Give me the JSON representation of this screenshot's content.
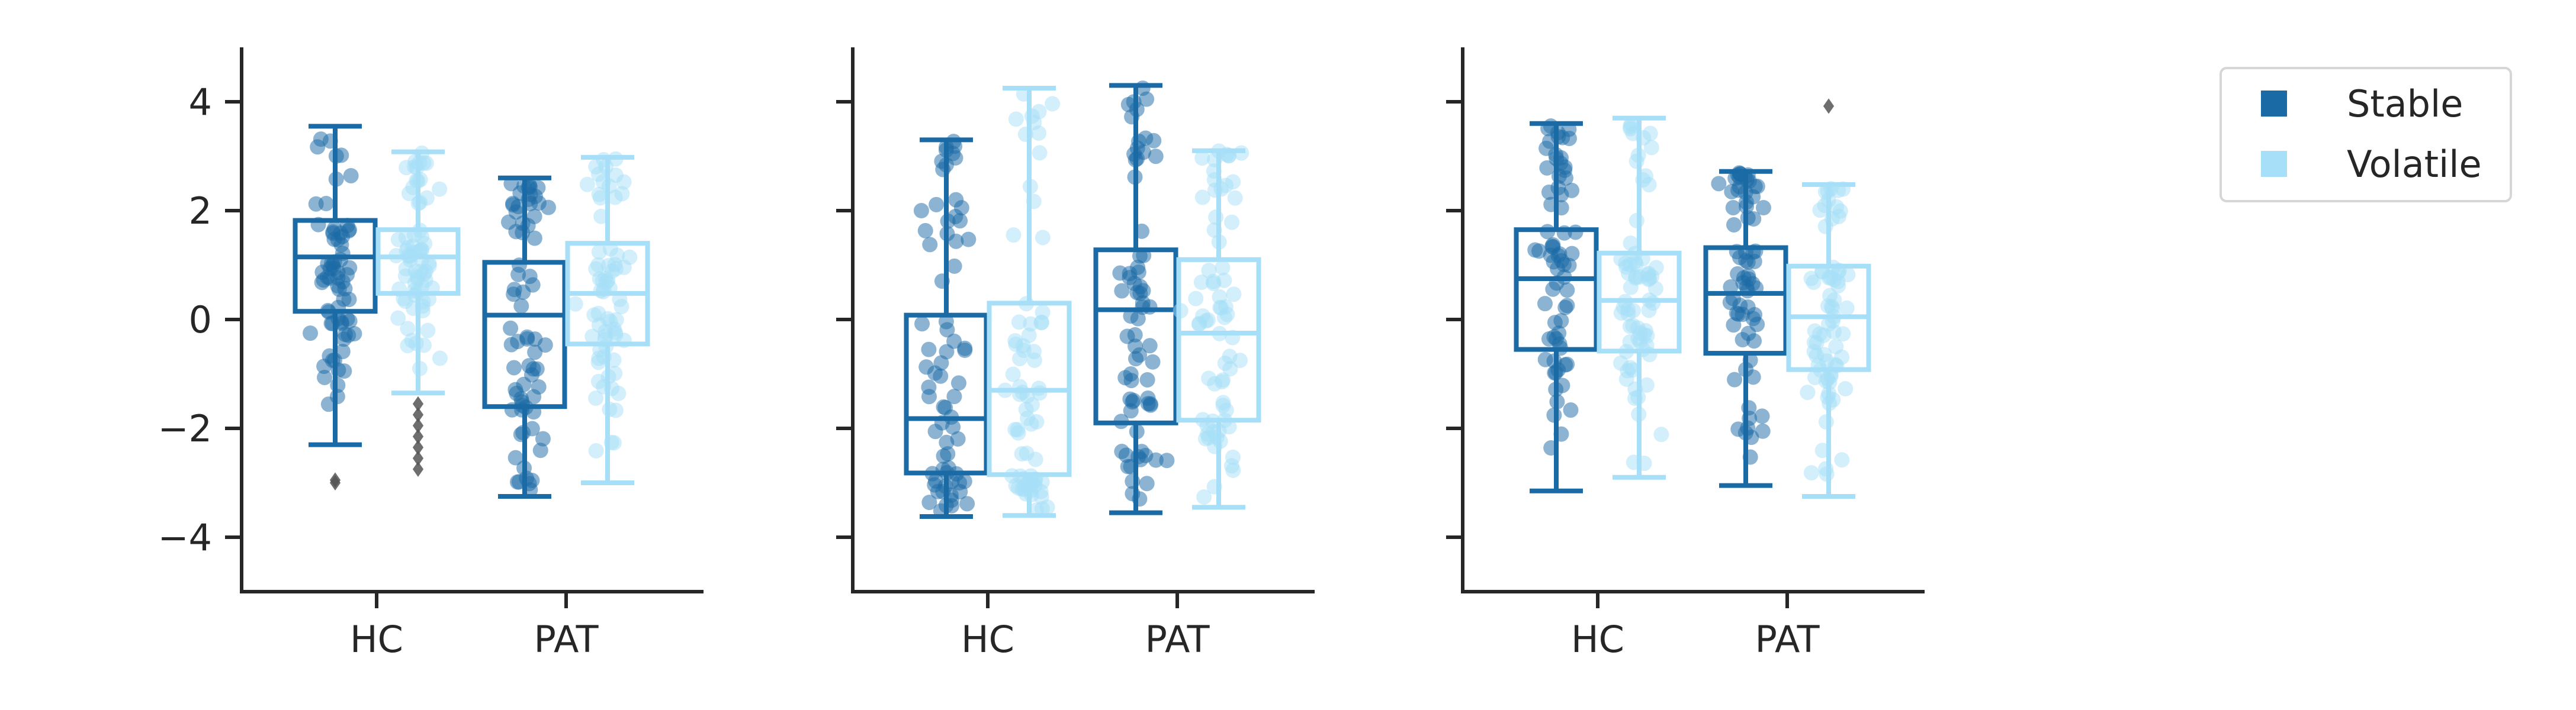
{
  "chart_data": {
    "type": "box",
    "shared_y": {
      "ylim": [
        -5,
        5
      ],
      "ticks": [
        -4,
        -2,
        0,
        2,
        4
      ],
      "tick_labels": [
        "−4",
        "−2",
        "0",
        "2",
        "4"
      ]
    },
    "categories": [
      "HC",
      "PAT"
    ],
    "legend": {
      "placement": "top-right",
      "entries": [
        {
          "name": "Stable",
          "color": "#1a6aa6"
        },
        {
          "name": "Volatile",
          "color": "#a6dff7"
        }
      ]
    },
    "colors": {
      "axis": "#262626",
      "outlier": "#555555"
    },
    "panels": [
      {
        "series": [
          {
            "name": "Stable",
            "boxes": [
              {
                "category": "HC",
                "whislo": -2.3,
                "q1": 0.15,
                "med": 1.15,
                "q3": 1.82,
                "whishi": 3.55,
                "fliers": [
                  -3.0,
                  -2.95
                ]
              },
              {
                "category": "PAT",
                "whislo": -3.25,
                "q1": -1.6,
                "med": 0.08,
                "q3": 1.05,
                "whishi": 2.6,
                "fliers": []
              }
            ]
          },
          {
            "name": "Volatile",
            "boxes": [
              {
                "category": "HC",
                "whislo": -1.35,
                "q1": 0.48,
                "med": 1.15,
                "q3": 1.65,
                "whishi": 3.08,
                "fliers": [
                  -1.55,
                  -1.75,
                  -1.95,
                  -2.15,
                  -2.35,
                  -2.55,
                  -2.75
                ]
              },
              {
                "category": "PAT",
                "whislo": -3.0,
                "q1": -0.45,
                "med": 0.48,
                "q3": 1.4,
                "whishi": 2.98,
                "fliers": []
              }
            ]
          }
        ]
      },
      {
        "series": [
          {
            "name": "Stable",
            "boxes": [
              {
                "category": "HC",
                "whislo": -3.62,
                "q1": -2.82,
                "med": -1.82,
                "q3": 0.08,
                "whishi": 3.3,
                "fliers": []
              },
              {
                "category": "PAT",
                "whislo": -3.55,
                "q1": -1.9,
                "med": 0.18,
                "q3": 1.28,
                "whishi": 4.3,
                "fliers": []
              }
            ]
          },
          {
            "name": "Volatile",
            "boxes": [
              {
                "category": "HC",
                "whislo": -3.6,
                "q1": -2.85,
                "med": -1.3,
                "q3": 0.3,
                "whishi": 4.25,
                "fliers": []
              },
              {
                "category": "PAT",
                "whislo": -3.45,
                "q1": -1.85,
                "med": -0.25,
                "q3": 1.1,
                "whishi": 3.1,
                "fliers": []
              }
            ]
          }
        ]
      },
      {
        "series": [
          {
            "name": "Stable",
            "boxes": [
              {
                "category": "HC",
                "whislo": -3.15,
                "q1": -0.55,
                "med": 0.75,
                "q3": 1.65,
                "whishi": 3.6,
                "fliers": []
              },
              {
                "category": "PAT",
                "whislo": -3.05,
                "q1": -0.62,
                "med": 0.48,
                "q3": 1.32,
                "whishi": 2.72,
                "fliers": []
              }
            ]
          },
          {
            "name": "Volatile",
            "boxes": [
              {
                "category": "HC",
                "whislo": -2.9,
                "q1": -0.58,
                "med": 0.35,
                "q3": 1.22,
                "whishi": 3.7,
                "fliers": []
              },
              {
                "category": "PAT",
                "whislo": -3.25,
                "q1": -0.92,
                "med": 0.05,
                "q3": 0.98,
                "whishi": 2.48,
                "fliers": [
                  3.92
                ]
              }
            ]
          }
        ]
      }
    ]
  }
}
